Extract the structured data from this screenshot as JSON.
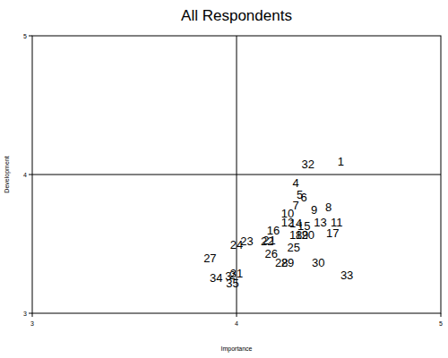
{
  "chart_data": {
    "type": "scatter",
    "title": "All Respondents",
    "x_label": "Importance",
    "y_label": "Development",
    "xlim": [
      3,
      5
    ],
    "ylim": [
      3,
      5
    ],
    "xticks": [
      3,
      4,
      5
    ],
    "yticks": [
      3,
      4,
      5
    ],
    "reference_x": 4,
    "reference_y": 4,
    "marker": "label",
    "color": "#000000",
    "grid": false,
    "labels": [
      "1",
      "32",
      "4",
      "5",
      "6",
      "7",
      "8",
      "9",
      "10",
      "13",
      "11",
      "12",
      "14",
      "15",
      "16",
      "17",
      "18",
      "19",
      "20",
      "21",
      "22",
      "23",
      "24",
      "25",
      "26",
      "27",
      "28",
      "29",
      "30",
      "31",
      "33",
      "34",
      "3",
      "2",
      "35"
    ],
    "x": [
      4.51,
      4.35,
      4.29,
      4.31,
      4.33,
      4.29,
      4.45,
      4.38,
      4.25,
      4.41,
      4.49,
      4.25,
      4.29,
      4.33,
      4.18,
      4.47,
      4.29,
      4.32,
      4.35,
      4.16,
      4.15,
      4.05,
      4.0,
      4.28,
      4.17,
      3.87,
      4.22,
      4.25,
      4.4,
      4.0,
      4.54,
      3.9,
      3.96,
      3.98,
      3.98
    ],
    "values": [
      4.1,
      4.08,
      3.94,
      3.86,
      3.84,
      3.78,
      3.77,
      3.75,
      3.72,
      3.66,
      3.66,
      3.66,
      3.65,
      3.63,
      3.6,
      3.58,
      3.57,
      3.57,
      3.57,
      3.53,
      3.52,
      3.52,
      3.5,
      3.48,
      3.43,
      3.4,
      3.37,
      3.37,
      3.37,
      3.29,
      3.28,
      3.26,
      3.27,
      3.28,
      3.22
    ]
  }
}
